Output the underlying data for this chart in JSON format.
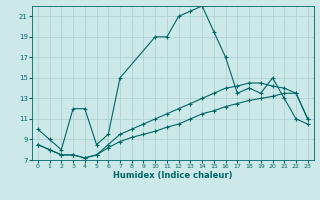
{
  "xlabel": "Humidex (Indice chaleur)",
  "xlim": [
    -0.5,
    23.5
  ],
  "ylim": [
    7,
    22
  ],
  "yticks": [
    7,
    9,
    11,
    13,
    15,
    17,
    19,
    21
  ],
  "xticks": [
    0,
    1,
    2,
    3,
    4,
    5,
    6,
    7,
    8,
    9,
    10,
    11,
    12,
    13,
    14,
    15,
    16,
    17,
    18,
    19,
    20,
    21,
    22,
    23
  ],
  "bg_color": "#cce8e8",
  "grid_color": "#aacece",
  "line_color": "#006666",
  "line1_x": [
    0,
    1,
    2,
    3,
    4,
    5,
    6,
    7,
    10,
    11,
    12,
    13,
    14,
    15,
    16,
    17,
    18,
    19,
    20,
    21,
    22,
    23
  ],
  "line1_y": [
    10.0,
    9.0,
    8.0,
    12.0,
    12.0,
    8.5,
    9.5,
    15.0,
    19.0,
    19.0,
    21.0,
    21.5,
    22.0,
    19.5,
    17.0,
    13.5,
    14.0,
    13.5,
    15.0,
    13.0,
    11.0,
    10.5
  ],
  "line2_x": [
    0,
    1,
    2,
    3,
    4,
    5,
    6,
    7,
    8,
    9,
    10,
    11,
    12,
    13,
    14,
    15,
    16,
    17,
    18,
    19,
    20,
    21,
    22,
    23
  ],
  "line2_y": [
    8.5,
    8.0,
    7.5,
    7.5,
    7.2,
    7.5,
    8.2,
    8.8,
    9.2,
    9.5,
    9.8,
    10.2,
    10.5,
    11.0,
    11.5,
    11.8,
    12.2,
    12.5,
    12.8,
    13.0,
    13.2,
    13.5,
    13.5,
    11.0
  ],
  "line3_x": [
    0,
    1,
    2,
    3,
    4,
    5,
    6,
    7,
    8,
    9,
    10,
    11,
    12,
    13,
    14,
    15,
    16,
    17,
    18,
    19,
    20,
    21,
    22,
    23
  ],
  "line3_y": [
    8.5,
    8.0,
    7.5,
    7.5,
    7.2,
    7.5,
    8.5,
    9.5,
    10.0,
    10.5,
    11.0,
    11.5,
    12.0,
    12.5,
    13.0,
    13.5,
    14.0,
    14.2,
    14.5,
    14.5,
    14.2,
    14.0,
    13.5,
    11.0
  ]
}
